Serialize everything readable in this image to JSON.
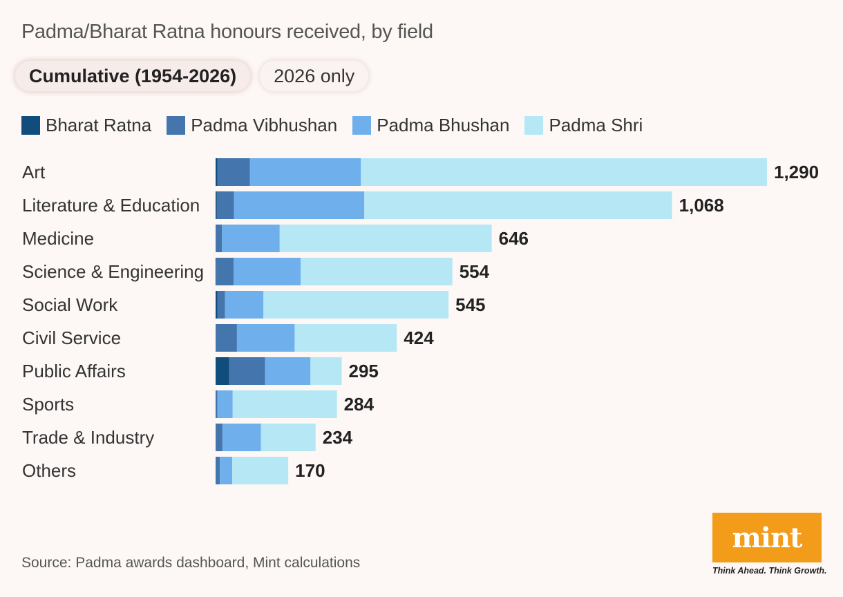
{
  "title": "Padma/Bharat Ratna honours received, by field",
  "tabs": [
    {
      "label": "Cumulative (1954-2026)",
      "active": true
    },
    {
      "label": "2026 only",
      "active": false
    }
  ],
  "colors": {
    "Bharat Ratna": "#114d7c",
    "Padma Vibhushan": "#4575ad",
    "Padma Bhushan": "#6fb0ec",
    "Padma Shri": "#b5e8f4"
  },
  "chart_data": {
    "type": "bar",
    "orientation": "horizontal",
    "stacked": true,
    "categories": [
      "Art",
      "Literature & Education",
      "Medicine",
      "Science & Engineering",
      "Social Work",
      "Civil Service",
      "Public Affairs",
      "Sports",
      "Trade & Industry",
      "Others"
    ],
    "series": [
      {
        "name": "Bharat Ratna",
        "values": [
          4,
          3,
          0,
          2,
          4,
          0,
          32,
          1,
          0,
          0
        ]
      },
      {
        "name": "Padma Vibhushan",
        "values": [
          76,
          40,
          15,
          40,
          18,
          50,
          84,
          3,
          16,
          10
        ]
      },
      {
        "name": "Padma Bhushan",
        "values": [
          260,
          305,
          135,
          157,
          90,
          135,
          106,
          36,
          90,
          29
        ]
      },
      {
        "name": "Padma Shri",
        "values": [
          950,
          720,
          496,
          355,
          433,
          239,
          73,
          244,
          128,
          131
        ]
      }
    ],
    "totals": [
      "1,290",
      "1,068",
      "646",
      "554",
      "545",
      "424",
      "295",
      "284",
      "234",
      "170"
    ],
    "legend": "top-left",
    "grid": false
  },
  "footer": {
    "source": "Source: Padma awards dashboard, Mint calculations",
    "logo_text": "mint",
    "tagline": "Think Ahead. Think Growth."
  }
}
